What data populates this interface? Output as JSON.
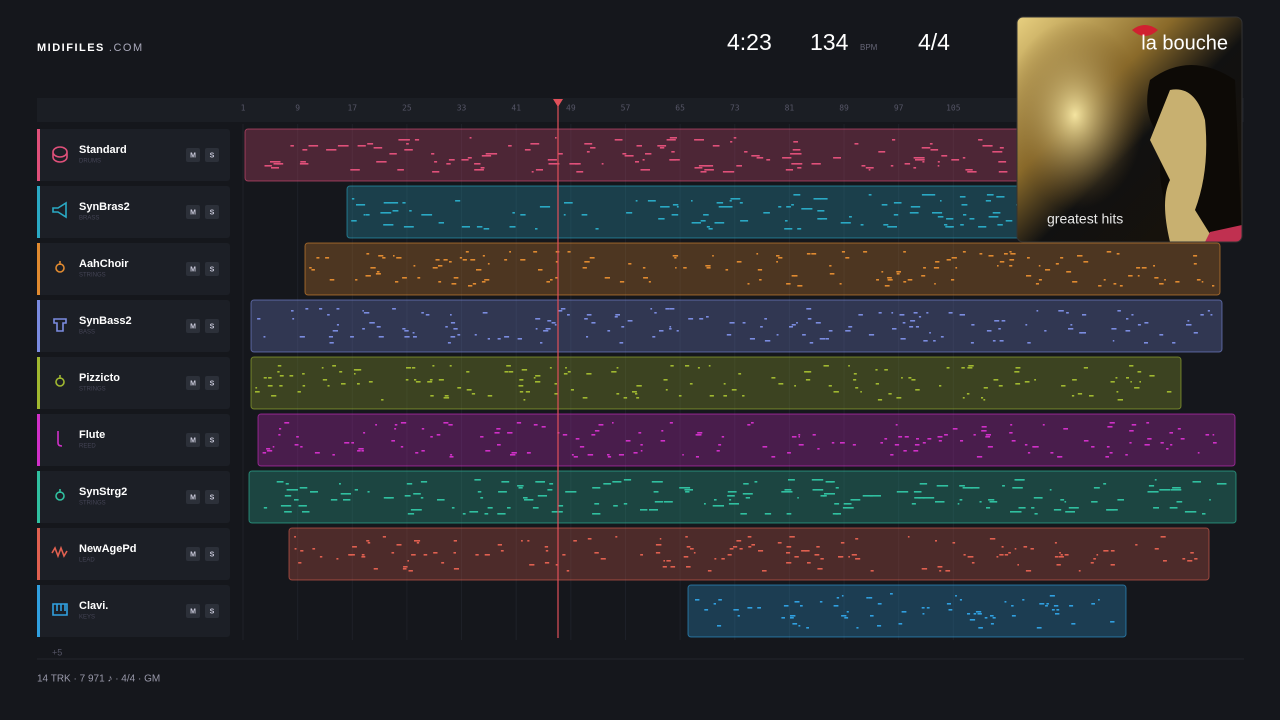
{
  "header": {
    "logo": {
      "brand": "MIDIFILES",
      "suffix": ".COM"
    },
    "duration": "4:23",
    "tempo": {
      "value": "134",
      "unit": "BPM"
    },
    "time_signature": "4/4"
  },
  "album": {
    "artist": "la bouche",
    "title": "greatest hits"
  },
  "ruler": {
    "bars": [
      1,
      9,
      17,
      25,
      33,
      41,
      49,
      57,
      65,
      73,
      81,
      89,
      97,
      105
    ]
  },
  "tracks": [
    {
      "name": "Standard",
      "category": "DRUMS",
      "color": "#e0507a",
      "mute": "M",
      "solo": "S"
    },
    {
      "name": "SynBras2",
      "category": "BRASS",
      "color": "#2aa9c4",
      "mute": "M",
      "solo": "S"
    },
    {
      "name": "AahChoir",
      "category": "STRINGS",
      "color": "#e08a30",
      "mute": "M",
      "solo": "S"
    },
    {
      "name": "SynBass2",
      "category": "BASS",
      "color": "#7b8ce0",
      "mute": "M",
      "solo": "S"
    },
    {
      "name": "Pizzicto",
      "category": "STRINGS",
      "color": "#a0b830",
      "mute": "M",
      "solo": "S"
    },
    {
      "name": "Flute",
      "category": "REED",
      "color": "#d030c8",
      "mute": "M",
      "solo": "S"
    },
    {
      "name": "SynStrg2",
      "category": "STRINGS",
      "color": "#30c0a0",
      "mute": "M",
      "solo": "S"
    },
    {
      "name": "NewAgePd",
      "category": "LEAD",
      "color": "#e06050",
      "mute": "M",
      "solo": "S"
    },
    {
      "name": "Clavi.",
      "category": "KEYS",
      "color": "#30a0e0",
      "mute": "M",
      "solo": "S"
    }
  ],
  "more_tracks": "+5",
  "footer": "14 TRK · 7 971 ♪ · 4/4 · GM"
}
